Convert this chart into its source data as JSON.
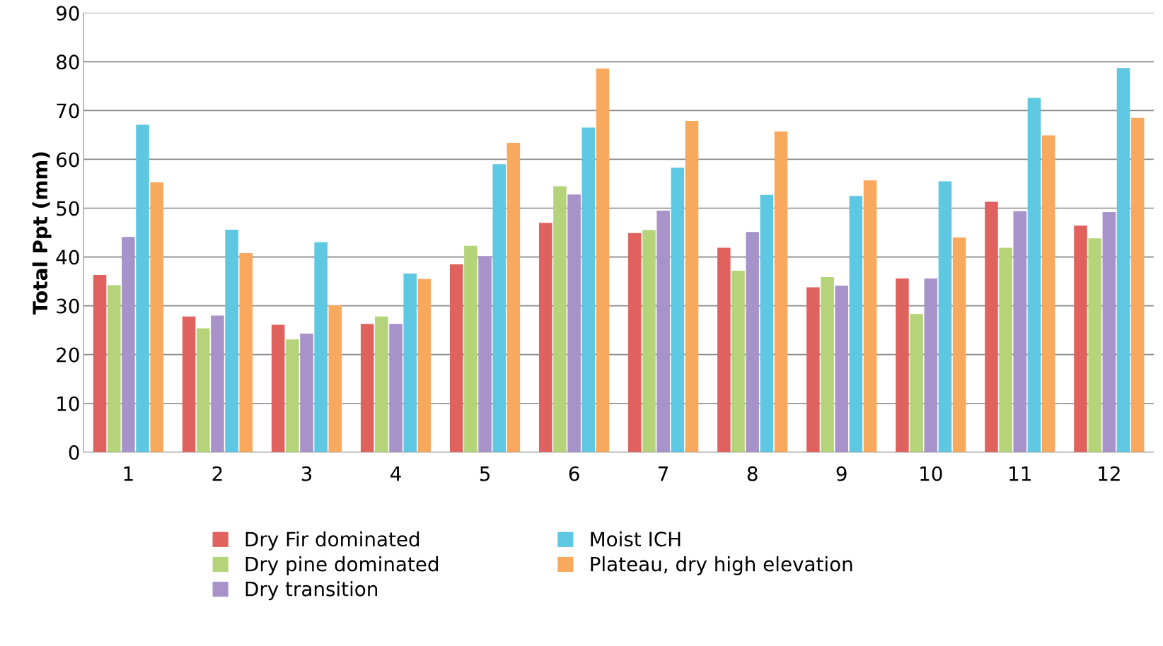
{
  "chart_data": {
    "type": "bar",
    "ylabel": "Total Ppt (mm)",
    "categories": [
      "1",
      "2",
      "3",
      "4",
      "5",
      "6",
      "7",
      "8",
      "9",
      "10",
      "11",
      "12"
    ],
    "series": [
      {
        "name": "Dry Fir dominated",
        "color": "#e0625e",
        "values": [
          36.3,
          27.8,
          26.1,
          26.3,
          38.5,
          47.0,
          44.9,
          41.9,
          33.8,
          35.6,
          51.3,
          46.4
        ]
      },
      {
        "name": "Dry pine dominated",
        "color": "#b5d47a",
        "values": [
          34.2,
          25.4,
          23.1,
          27.8,
          42.3,
          54.5,
          45.5,
          37.2,
          35.9,
          28.3,
          41.9,
          43.8
        ]
      },
      {
        "name": "Dry transition",
        "color": "#a793c9",
        "values": [
          44.1,
          28.0,
          24.3,
          26.3,
          40.2,
          52.8,
          49.5,
          45.1,
          34.1,
          35.6,
          49.4,
          49.2
        ]
      },
      {
        "name": "Moist ICH",
        "color": "#5ec7e2",
        "values": [
          67.1,
          45.6,
          43.0,
          36.6,
          59.0,
          66.5,
          58.3,
          52.7,
          52.5,
          55.5,
          72.6,
          78.7
        ]
      },
      {
        "name": "Plateau, dry high elevation",
        "color": "#f9a95e",
        "values": [
          55.3,
          40.8,
          30.1,
          35.5,
          63.4,
          78.6,
          67.9,
          65.7,
          55.7,
          44.0,
          64.9,
          68.5
        ]
      }
    ],
    "ylim": [
      0,
      90
    ],
    "yticks": [
      0,
      10,
      20,
      30,
      40,
      50,
      60,
      70,
      80,
      90
    ],
    "grid": "y",
    "legend": "bottom"
  }
}
